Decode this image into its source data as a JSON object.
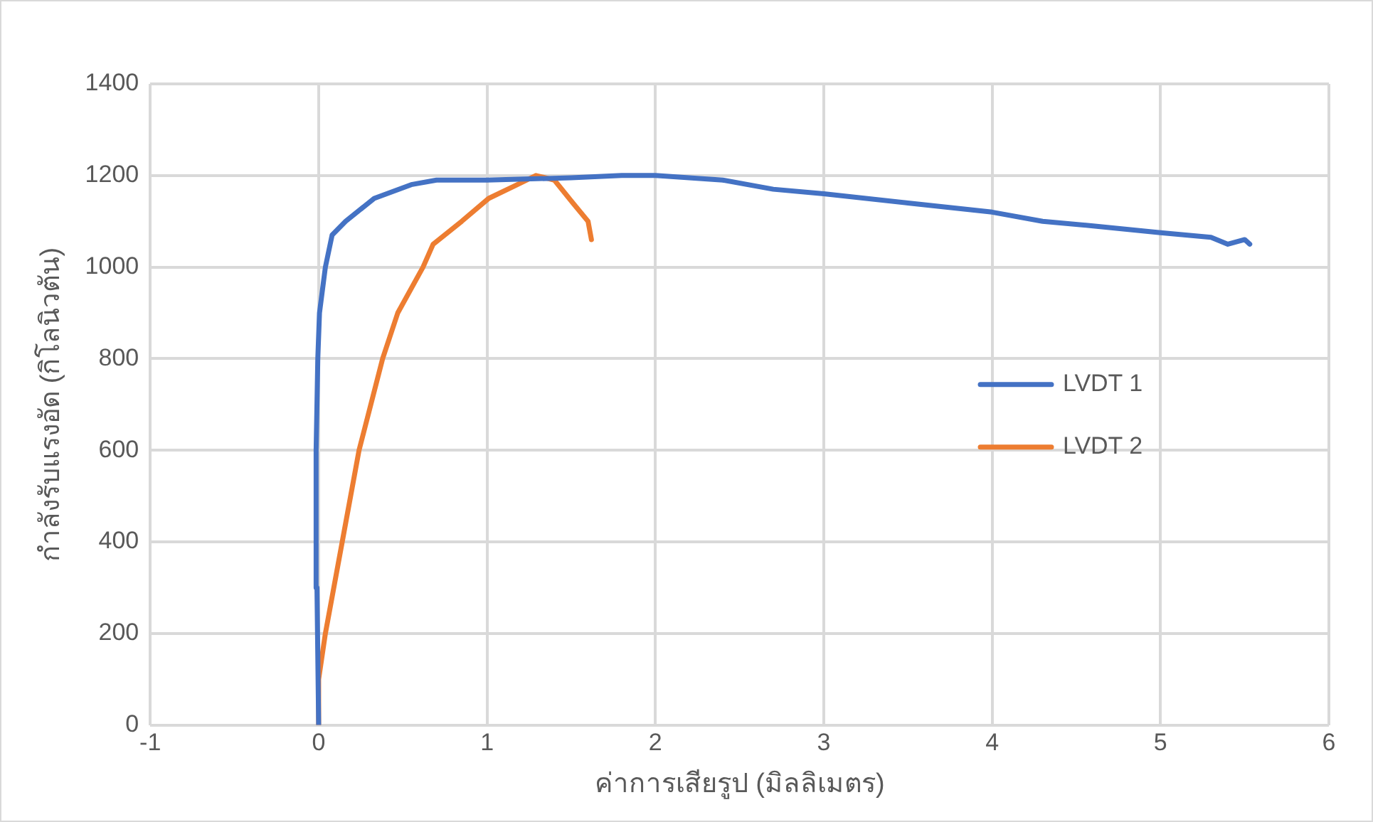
{
  "chart_data": {
    "type": "line",
    "xlabel": "ค่าการเสียรูป (มิลลิเมตร)",
    "ylabel": "กำลังรับแรงอัด (กิโลนิวตัน)",
    "xlim": [
      -1,
      6
    ],
    "xticks": [
      -1,
      0,
      1,
      2,
      3,
      4,
      5,
      6
    ],
    "ylim": [
      0,
      1400
    ],
    "yticks": [
      0,
      200,
      400,
      600,
      800,
      1000,
      1200,
      1400
    ],
    "grid": true,
    "legend": "right",
    "marker": "none",
    "line_style": "solid",
    "series": [
      {
        "name": "LVDT 1",
        "color": "#4472c4",
        "x": [
          0,
          -0.01,
          -0.015,
          -0.005,
          0.005,
          0.04,
          0.08,
          0.16,
          0.33,
          0.55,
          0.7,
          1.0,
          1.5,
          1.8,
          2.0,
          2.4,
          2.7,
          3.0,
          3.5,
          4.0,
          4.3,
          4.6,
          5.0,
          5.3,
          5.4,
          5.5,
          5.53
        ],
        "values": [
          0,
          300,
          600,
          800,
          900,
          1000,
          1070,
          1100,
          1150,
          1180,
          1190,
          1190,
          1195,
          1200,
          1200,
          1190,
          1170,
          1160,
          1140,
          1120,
          1100,
          1090,
          1075,
          1065,
          1050,
          1060,
          1050
        ]
      },
      {
        "name": "LVDT 2",
        "color": "#ed7d31",
        "x": [
          0,
          0,
          0.04,
          0.14,
          0.24,
          0.38,
          0.47,
          0.62,
          0.68,
          0.85,
          1.01,
          1.18,
          1.29,
          1.4,
          1.51,
          1.6,
          1.62
        ],
        "values": [
          0,
          100,
          200,
          400,
          600,
          800,
          900,
          1000,
          1050,
          1100,
          1150,
          1180,
          1200,
          1190,
          1140,
          1100,
          1060
        ]
      }
    ]
  }
}
